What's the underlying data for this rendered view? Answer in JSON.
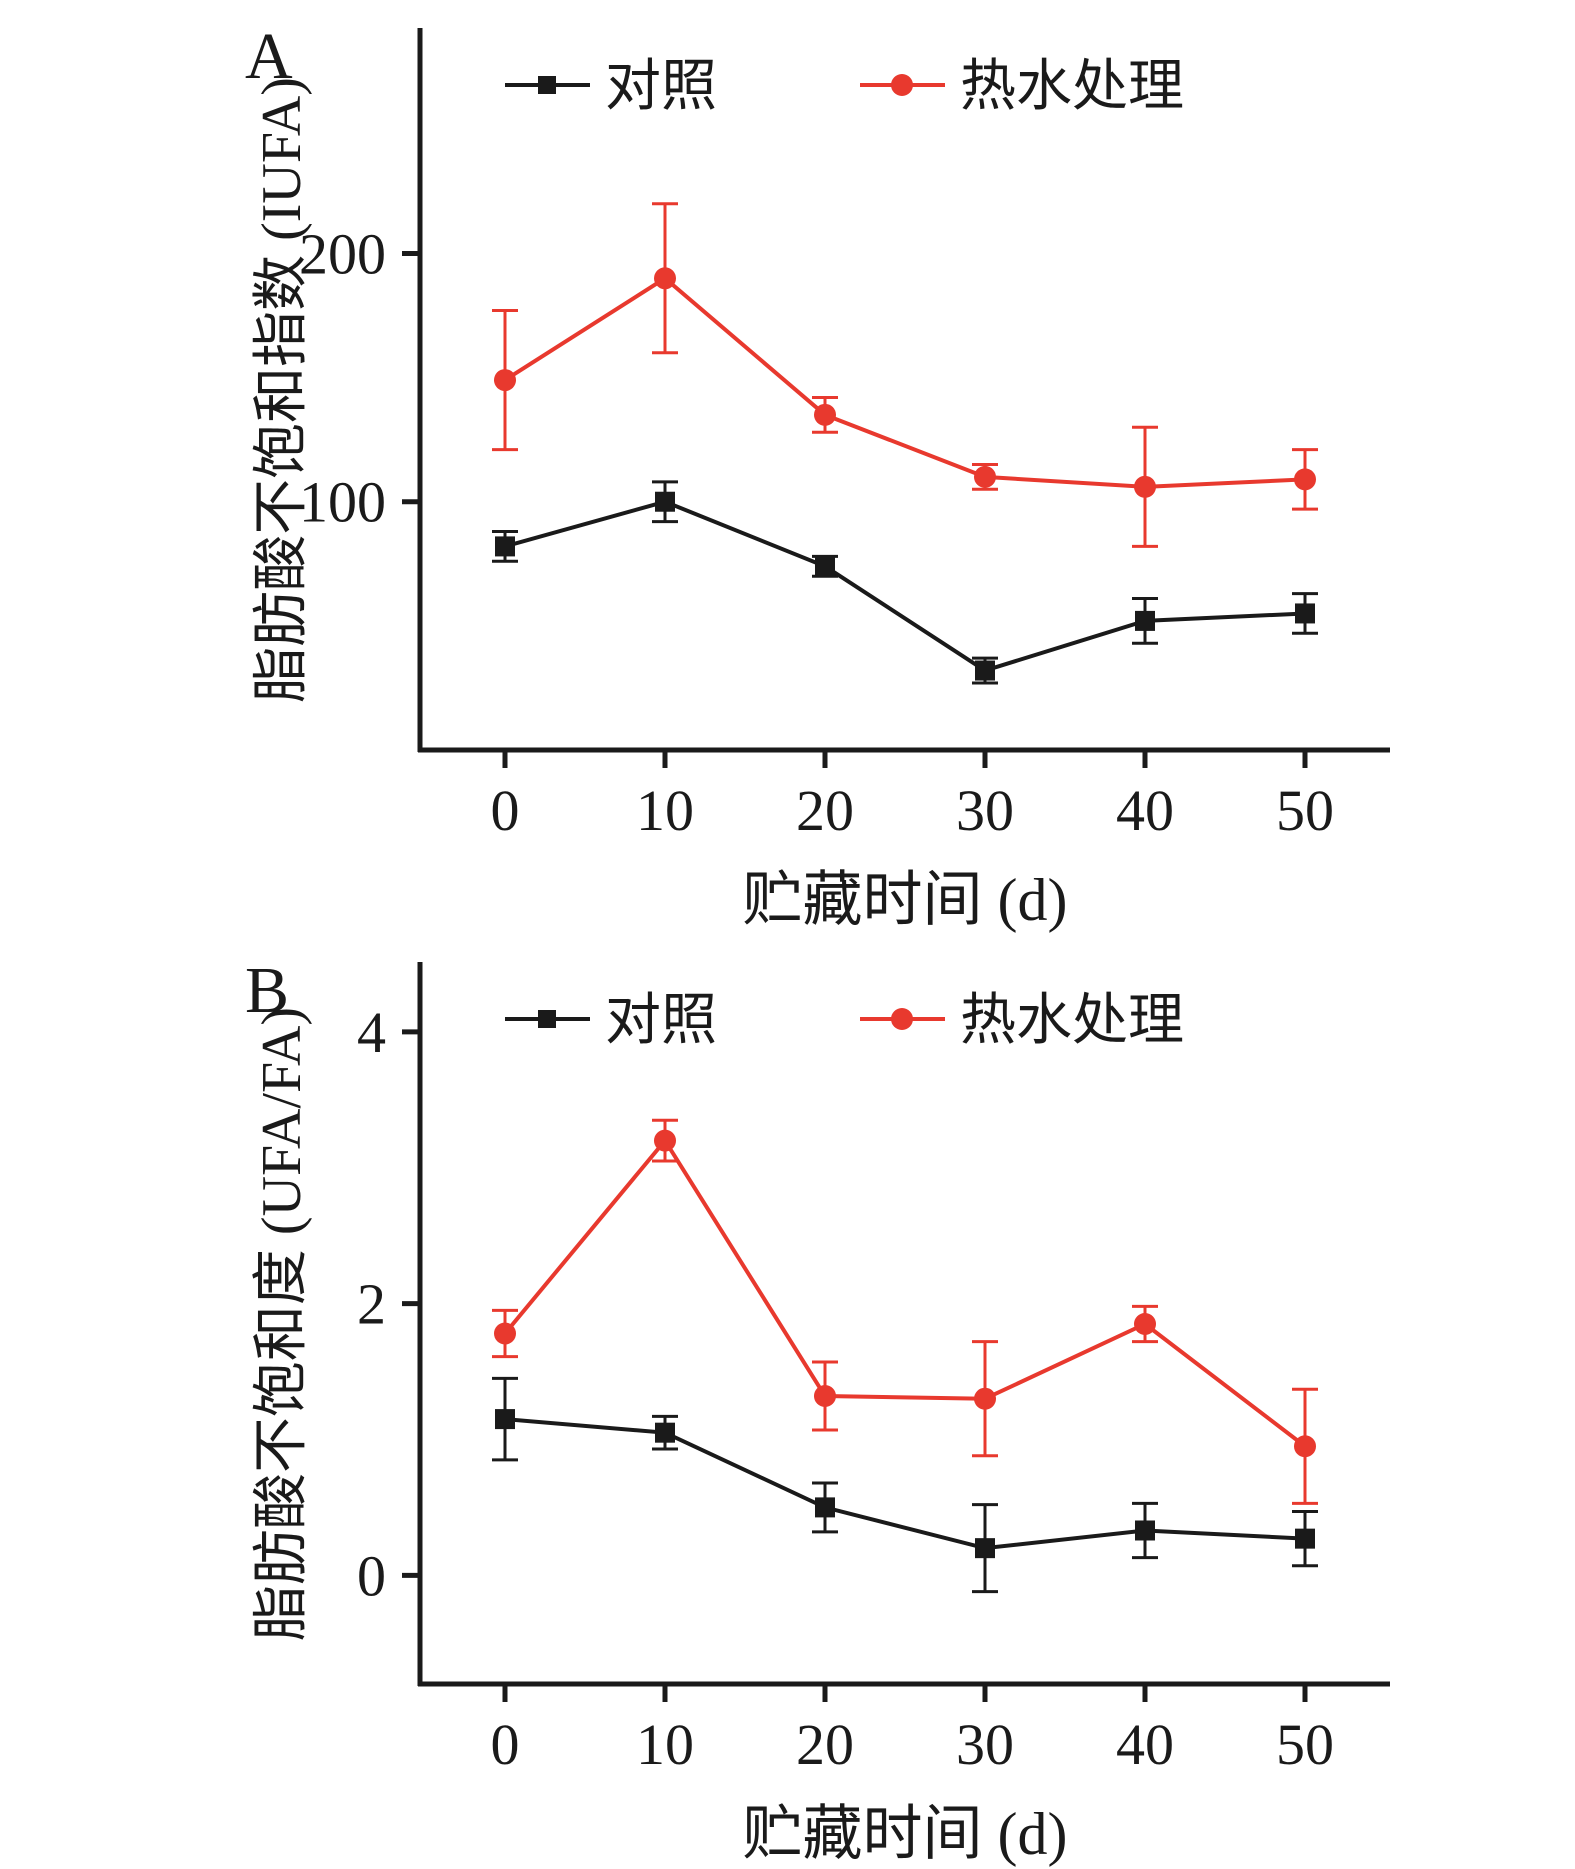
{
  "page": {
    "background_color": "#ffffff",
    "text_color": "#1a1a1a"
  },
  "chart_data": [
    {
      "type": "line",
      "panel_label": "A",
      "title": "",
      "xlabel": "贮藏时间 (d)",
      "ylabel": "脂肪酸不饱和指数 (IUFA)",
      "x": [
        0,
        10,
        20,
        30,
        40,
        50
      ],
      "yticks": [
        100,
        200
      ],
      "ylim": [
        0,
        290
      ],
      "grid": false,
      "legend_position": "top-inside",
      "series": [
        {
          "name": "对照",
          "color": "#1a1a1a",
          "marker": "square",
          "values": [
            82,
            100,
            74,
            32,
            52,
            55
          ],
          "errors": [
            6,
            8,
            4,
            5,
            9,
            8
          ]
        },
        {
          "name": "热水处理",
          "color": "#e8392e",
          "marker": "circle",
          "values": [
            149,
            190,
            135,
            110,
            106,
            109
          ],
          "errors": [
            28,
            30,
            7,
            5,
            24,
            12
          ]
        }
      ]
    },
    {
      "type": "line",
      "panel_label": "B",
      "title": "",
      "xlabel": "贮藏时间 (d)",
      "ylabel": "脂肪酸不饱和度 (UFA/FA)",
      "x": [
        0,
        10,
        20,
        30,
        40,
        50
      ],
      "yticks": [
        0,
        2,
        4
      ],
      "ylim": [
        -0.8,
        4.5
      ],
      "grid": false,
      "legend_position": "top-inside",
      "series": [
        {
          "name": "对照",
          "color": "#1a1a1a",
          "marker": "square",
          "values": [
            1.15,
            1.05,
            0.5,
            0.2,
            0.33,
            0.27
          ],
          "errors": [
            0.3,
            0.12,
            0.18,
            0.32,
            0.2,
            0.2
          ]
        },
        {
          "name": "热水处理",
          "color": "#e8392e",
          "marker": "circle",
          "values": [
            1.78,
            3.2,
            1.32,
            1.3,
            1.85,
            0.95
          ],
          "errors": [
            0.17,
            0.15,
            0.25,
            0.42,
            0.13,
            0.42
          ]
        }
      ]
    }
  ]
}
